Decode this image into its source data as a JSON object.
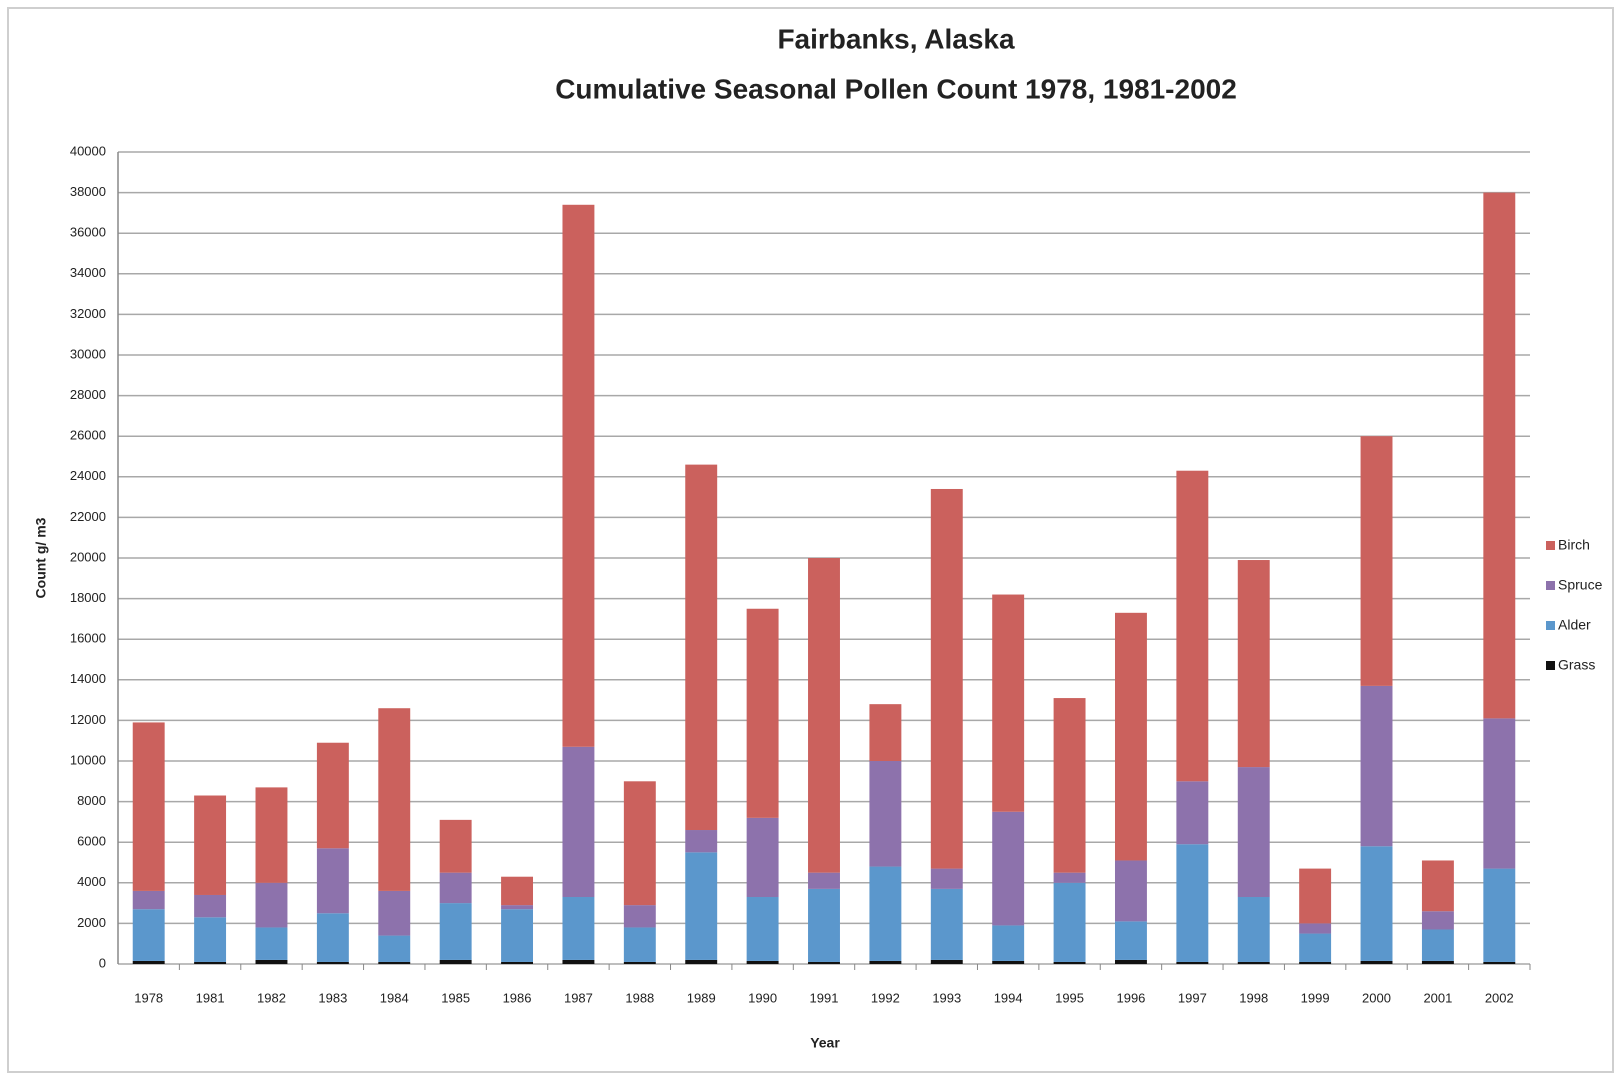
{
  "chart_data": {
    "type": "stacked_bar",
    "title": "Fairbanks, Alaska",
    "subtitle": "Cumulative Seasonal Pollen Count 1978, 1981-2002",
    "x_label": "Year",
    "y_label": "Count g/ m3",
    "categories": [
      "1978",
      "1981",
      "1982",
      "1983",
      "1984",
      "1985",
      "1986",
      "1987",
      "1988",
      "1989",
      "1990",
      "1991",
      "1992",
      "1993",
      "1994",
      "1995",
      "1996",
      "1997",
      "1998",
      "1999",
      "2000",
      "2001",
      "2002"
    ],
    "series": [
      {
        "name": "Grass",
        "color": "#111111",
        "values": [
          150,
          100,
          200,
          100,
          100,
          200,
          100,
          200,
          100,
          200,
          150,
          100,
          150,
          200,
          150,
          100,
          200,
          100,
          100,
          100,
          150,
          150,
          100
        ]
      },
      {
        "name": "Alder",
        "color": "#5b97cc",
        "values": [
          2550,
          2200,
          1600,
          2400,
          1300,
          2800,
          2600,
          3100,
          1700,
          5300,
          3150,
          3600,
          4650,
          3500,
          1750,
          3900,
          1900,
          5800,
          3200,
          1400,
          5650,
          1550,
          4600
        ]
      },
      {
        "name": "Spruce",
        "color": "#8d72ac",
        "values": [
          900,
          1100,
          2200,
          3200,
          2200,
          1500,
          200,
          7400,
          1100,
          1100,
          3900,
          800,
          5200,
          1000,
          5600,
          500,
          3000,
          3100,
          6400,
          500,
          7900,
          900,
          7400
        ]
      },
      {
        "name": "Birch",
        "color": "#cb615d",
        "values": [
          8300,
          4900,
          4700,
          5200,
          9000,
          2600,
          1400,
          26700,
          6100,
          18000,
          10300,
          15500,
          2800,
          18700,
          10700,
          8600,
          12200,
          15300,
          10200,
          2700,
          12300,
          2500,
          25900
        ]
      }
    ],
    "ylim": [
      0,
      40000
    ],
    "yticks": [
      0,
      2000,
      4000,
      6000,
      8000,
      10000,
      12000,
      14000,
      16000,
      18000,
      20000,
      22000,
      24000,
      26000,
      28000,
      30000,
      32000,
      34000,
      36000,
      38000,
      40000
    ],
    "grid": true,
    "legend": "right"
  }
}
